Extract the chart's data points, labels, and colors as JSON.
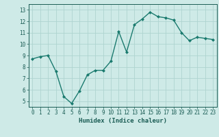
{
  "x": [
    0,
    1,
    2,
    3,
    4,
    5,
    6,
    7,
    8,
    9,
    10,
    11,
    12,
    13,
    14,
    15,
    16,
    17,
    18,
    19,
    20,
    21,
    22,
    23
  ],
  "y": [
    8.7,
    8.9,
    9.0,
    7.6,
    5.4,
    4.8,
    5.9,
    7.3,
    7.7,
    7.7,
    8.5,
    11.1,
    9.3,
    11.7,
    12.2,
    12.8,
    12.4,
    12.3,
    12.1,
    11.0,
    10.3,
    10.6,
    10.5,
    10.4
  ],
  "xlabel": "Humidex (Indice chaleur)",
  "xlim_min": -0.5,
  "xlim_max": 23.5,
  "ylim_min": 4.5,
  "ylim_max": 13.5,
  "yticks": [
    5,
    6,
    7,
    8,
    9,
    10,
    11,
    12,
    13
  ],
  "xticks": [
    0,
    1,
    2,
    3,
    4,
    5,
    6,
    7,
    8,
    9,
    10,
    11,
    12,
    13,
    14,
    15,
    16,
    17,
    18,
    19,
    20,
    21,
    22,
    23
  ],
  "line_color": "#1a7a6e",
  "marker": "D",
  "bg_color": "#ceeae7",
  "grid_color": "#aed4d0",
  "tick_color": "#1a5c54",
  "label_color": "#1a5c54",
  "tick_fontsize": 5.5,
  "xlabel_fontsize": 6.5,
  "linewidth": 1.0,
  "markersize": 2.0
}
